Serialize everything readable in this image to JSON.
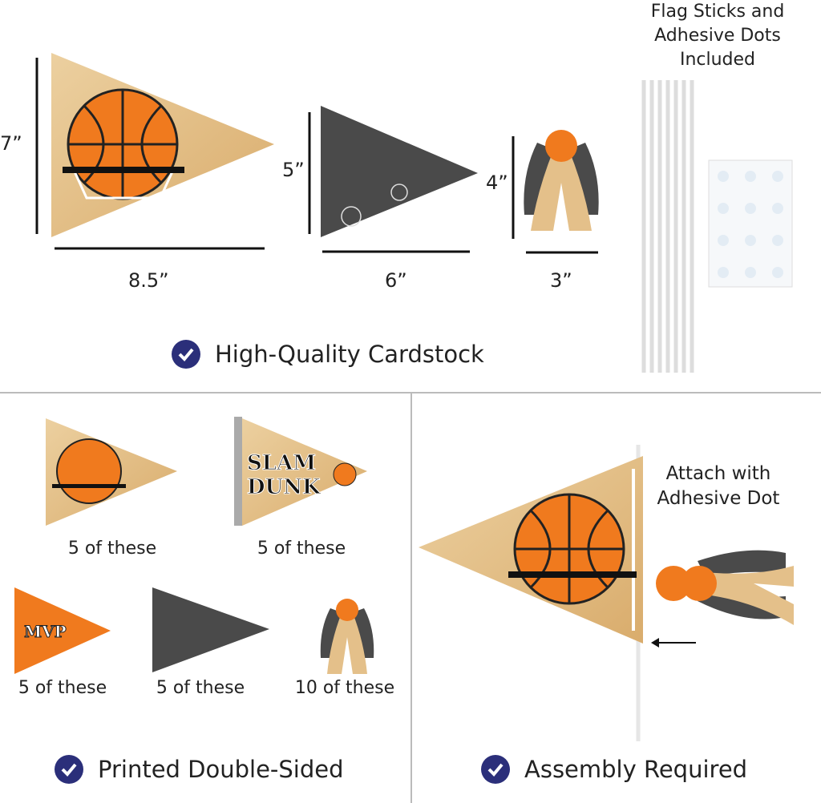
{
  "dimensions": {
    "height_7": "7”",
    "width_8_5": "8.5”",
    "height_5": "5”",
    "width_6": "6”",
    "height_4": "4”",
    "width_3": "3”"
  },
  "included_note": "Flag Sticks and Adhesive Dots Included",
  "features": [
    "High-Quality Cardstock",
    "Printed Double-Sided",
    "Assembly Required"
  ],
  "counts": [
    "5 of these",
    "5 of these",
    "5 of these",
    "5 of these",
    "10 of these"
  ],
  "pennant_texts": {
    "slam": "SLAM",
    "dunk": "DUNK",
    "mvp": "MVP"
  },
  "attach_note": "Attach with Adhesive Dot",
  "colors": {
    "check": "#2b2f7a",
    "wood": "#e4c08a",
    "orange": "#f07a1e",
    "dark": "#4a4a4a"
  }
}
